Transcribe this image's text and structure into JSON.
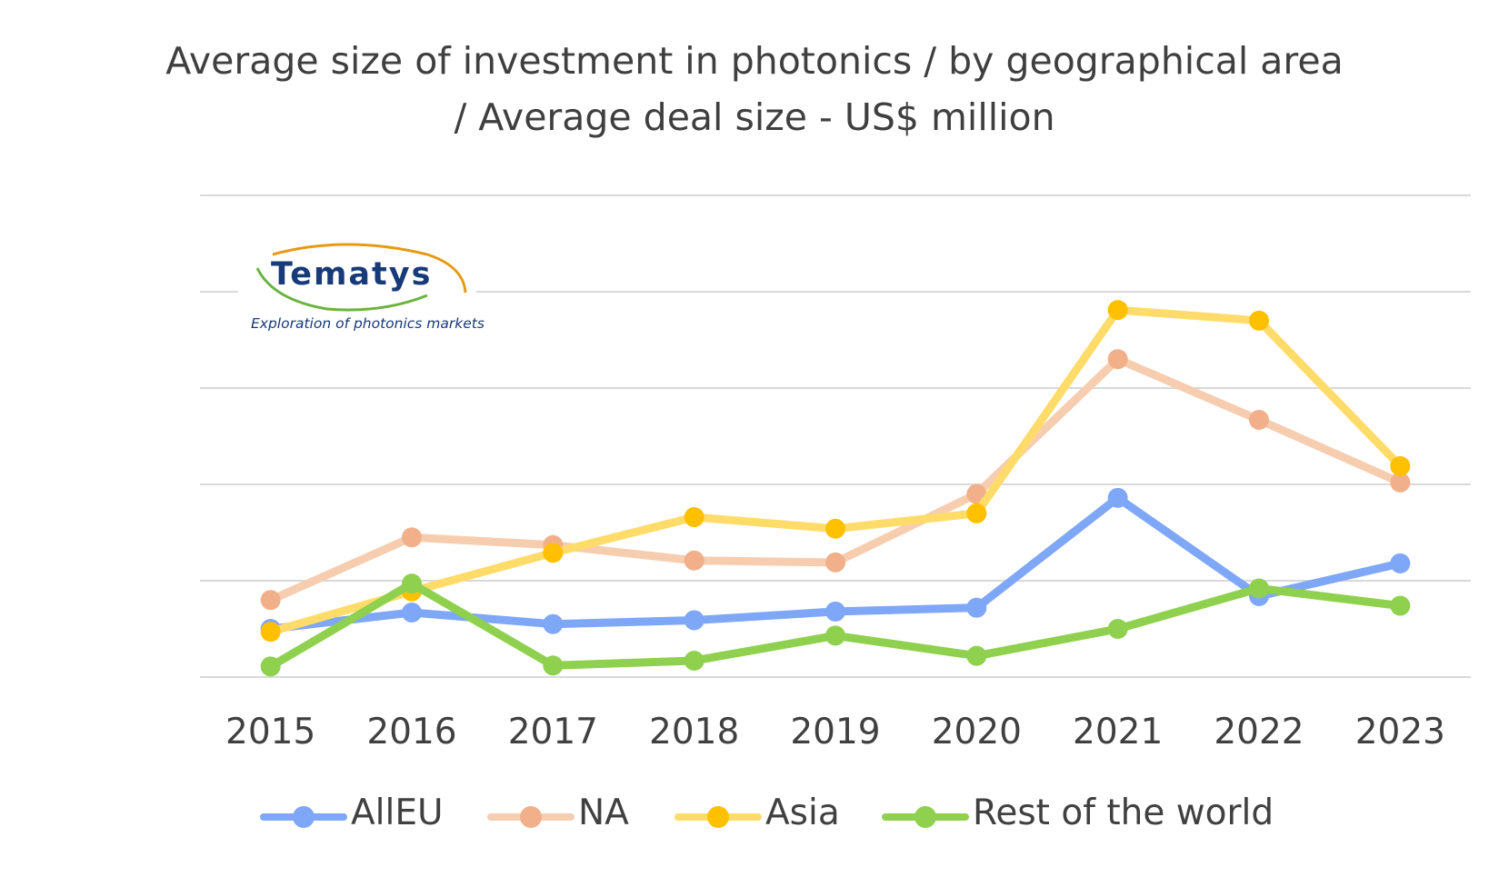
{
  "title": {
    "line1": "Average size of investment  in photonics / by geographical area",
    "line2": "/ Average deal size - US$ million"
  },
  "logo": {
    "name": "Tematys",
    "tagline": "Exploration of photonics markets"
  },
  "colors": {
    "grid": "#d9d9d9",
    "AllEU": "#7fa7f7",
    "NA_line": "#f7cdb0",
    "NA_marker": "#f2b08a",
    "Asia_line": "#ffdc6a",
    "Asia_marker": "#ffc000",
    "RestOfWorld": "#8fd14f"
  },
  "chart_data": {
    "type": "line",
    "title": "Average size of investment  in photonics / by geographical area / Average deal size - US$ million",
    "categories": [
      "2015",
      "2016",
      "2017",
      "2018",
      "2019",
      "2020",
      "2021",
      "2022",
      "2023"
    ],
    "ylim": [
      0,
      5
    ],
    "y_tick_labels_visible": false,
    "grid": true,
    "legend_position": "bottom",
    "series": [
      {
        "name": "AllEU",
        "values": [
          0.5,
          0.67,
          0.55,
          0.59,
          0.68,
          0.72,
          1.86,
          0.84,
          1.18
        ]
      },
      {
        "name": "NA",
        "values": [
          0.8,
          1.45,
          1.37,
          1.21,
          1.19,
          1.9,
          3.3,
          2.67,
          2.02
        ]
      },
      {
        "name": "Asia",
        "values": [
          0.47,
          0.89,
          1.29,
          1.66,
          1.54,
          1.7,
          3.81,
          3.7,
          2.19
        ]
      },
      {
        "name": "Rest of the world",
        "values": [
          0.11,
          0.97,
          0.12,
          0.17,
          0.43,
          0.22,
          0.5,
          0.92,
          0.74
        ]
      }
    ]
  },
  "legend": {
    "items": [
      "AllEU",
      "NA",
      "Asia",
      "Rest of the world"
    ]
  }
}
